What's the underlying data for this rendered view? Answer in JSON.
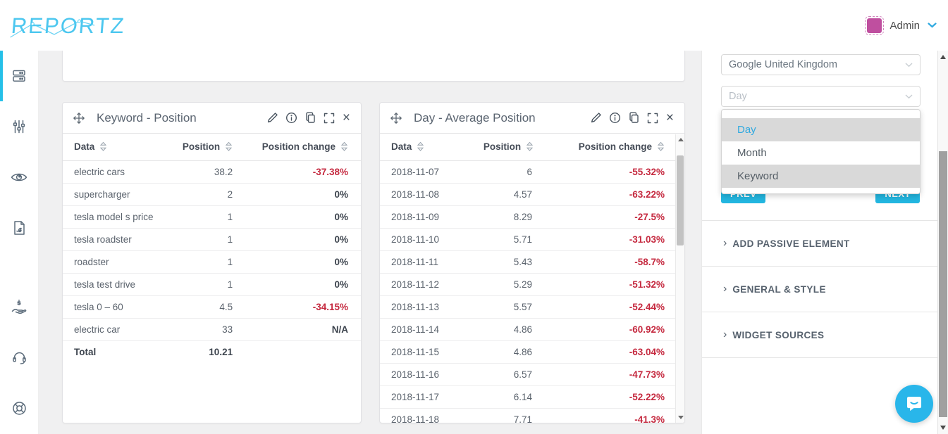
{
  "topbar": {
    "logo_text": "REPORTZ",
    "user_name": "Admin"
  },
  "sidebar": {
    "items": [
      {
        "icon": "widgets-icon",
        "active": true
      },
      {
        "icon": "settings-sliders-icon",
        "active": false
      },
      {
        "icon": "preview-eye-icon",
        "active": false
      },
      {
        "icon": "pdf-export-icon",
        "active": false
      },
      {
        "icon": "billing-icon",
        "active": false
      },
      {
        "icon": "support-headset-icon",
        "active": false
      },
      {
        "icon": "help-lifebuoy-icon",
        "active": false
      }
    ]
  },
  "widgets": [
    {
      "title": "Keyword - Position",
      "columns": [
        "Data",
        "Position",
        "Position change"
      ],
      "rows": [
        [
          "electric cars",
          "38.2",
          "-37.38%"
        ],
        [
          "supercharger",
          "2",
          "0%"
        ],
        [
          "tesla model s price",
          "1",
          "0%"
        ],
        [
          "tesla roadster",
          "1",
          "0%"
        ],
        [
          "roadster",
          "1",
          "0%"
        ],
        [
          "tesla test drive",
          "1",
          "0%"
        ],
        [
          "tesla 0 – 60",
          "4.5",
          "-34.15%"
        ],
        [
          "electric car",
          "33",
          "N/A"
        ]
      ],
      "total": {
        "label": "Total",
        "value": "10.21"
      }
    },
    {
      "title": "Day - Average Position",
      "columns": [
        "Data",
        "Position",
        "Position change"
      ],
      "rows": [
        [
          "2018-11-07",
          "6",
          "-55.32%"
        ],
        [
          "2018-11-08",
          "4.57",
          "-63.22%"
        ],
        [
          "2018-11-09",
          "8.29",
          "-27.5%"
        ],
        [
          "2018-11-10",
          "5.71",
          "-31.03%"
        ],
        [
          "2018-11-11",
          "5.43",
          "-58.7%"
        ],
        [
          "2018-11-12",
          "5.29",
          "-51.32%"
        ],
        [
          "2018-11-13",
          "5.57",
          "-52.44%"
        ],
        [
          "2018-11-14",
          "4.86",
          "-60.92%"
        ],
        [
          "2018-11-15",
          "4.86",
          "-63.04%"
        ],
        [
          "2018-11-16",
          "6.57",
          "-47.73%"
        ],
        [
          "2018-11-17",
          "6.14",
          "-52.22%"
        ],
        [
          "2018-11-18",
          "7.71",
          "-41.3%"
        ]
      ]
    }
  ],
  "panel": {
    "source_select": {
      "value": "Google United Kingdom"
    },
    "group_select": {
      "placeholder": "Day"
    },
    "dropdown": {
      "options": [
        {
          "label": "Day",
          "state": "selected"
        },
        {
          "label": "Month",
          "state": "normal"
        },
        {
          "label": "Keyword",
          "state": "highlighted"
        }
      ]
    },
    "prev_label": "PREV",
    "next_label": "NEXT",
    "sections": [
      {
        "label": "ADD PASSIVE ELEMENT"
      },
      {
        "label": "GENERAL & STYLE"
      },
      {
        "label": "WIDGET SOURCES"
      }
    ]
  },
  "colors": {
    "accent_cyan": "#23b6e0",
    "negative_red": "#c5293f",
    "selected_blue": "#2fa9e0",
    "avatar_magenta": "#bf4f9f",
    "logo_blue": "#4cc7ef",
    "sidebar_active": "#25c0e8"
  }
}
